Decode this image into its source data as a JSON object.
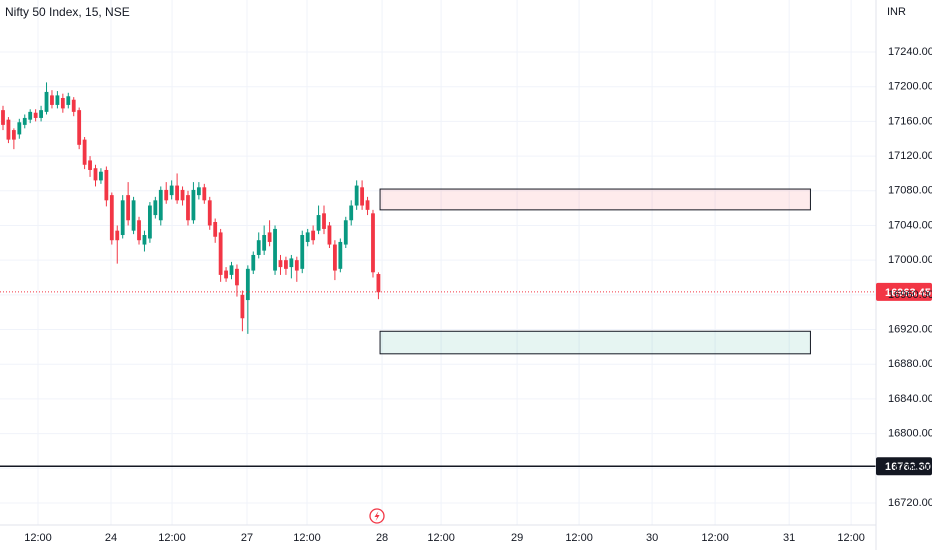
{
  "header": {
    "title": "Nifty 50 Index, 15, NSE",
    "currency": "INR"
  },
  "chart_data": {
    "type": "candlestick",
    "x": [
      0,
      1,
      2,
      3,
      4,
      5,
      6,
      7,
      8,
      9,
      10,
      11,
      12,
      13,
      14,
      15,
      16,
      17,
      18,
      19,
      20,
      21,
      22,
      23,
      24,
      25,
      26,
      27,
      28,
      29,
      30,
      31,
      32,
      33,
      34,
      35,
      36,
      37,
      38,
      39,
      40,
      41,
      42,
      43,
      44,
      45,
      46,
      47,
      48,
      49,
      50,
      51,
      52,
      53,
      54,
      55,
      56,
      57,
      58,
      59,
      60,
      61,
      62,
      63,
      64,
      65,
      66,
      67,
      68,
      69
    ],
    "open": [
      17173,
      17162,
      17150,
      17145,
      17156,
      17162,
      17170,
      17164,
      17171,
      17190,
      17179,
      17187,
      17179,
      17185,
      17173,
      17139,
      17115,
      17106,
      17092,
      17104,
      17075,
      17034,
      17029,
      17075,
      17034,
      17046,
      17018,
      17025,
      17052,
      17046,
      17081,
      17075,
      17086,
      17081,
      17075,
      17046,
      17075,
      17084,
      17069,
      17044,
      17032,
      16988,
      16983,
      16990,
      16960,
      16954,
      16988,
      17006,
      17011,
      17032,
      16988,
      17000,
      17000,
      16992,
      17000,
      16990,
      17021,
      17034,
      17034,
      17054,
      17040,
      17018,
      16990,
      17018,
      17046,
      17063,
      17084,
      17069,
      17054,
      16984
    ],
    "high": [
      17178,
      17165,
      17152,
      17163,
      17168,
      17174,
      17174,
      17178,
      17205,
      17196,
      17195,
      17192,
      17193,
      17188,
      17176,
      17142,
      17120,
      17110,
      17106,
      17108,
      17078,
      17040,
      17075,
      17090,
      17073,
      17050,
      17034,
      17067,
      17073,
      17085,
      17090,
      17092,
      17100,
      17085,
      17080,
      17090,
      17090,
      17088,
      17073,
      17048,
      17036,
      16992,
      16998,
      16995,
      16965,
      16994,
      17010,
      17032,
      17040,
      17046,
      17040,
      17006,
      17004,
      17006,
      17004,
      17034,
      17036,
      17040,
      17063,
      17063,
      17044,
      17023,
      17025,
      17050,
      17069,
      17092,
      17092,
      17073,
      17058,
      16986
    ],
    "low": [
      17150,
      17135,
      17128,
      17140,
      17152,
      17158,
      17160,
      17160,
      17168,
      17175,
      17175,
      17170,
      17175,
      17166,
      17128,
      17105,
      17096,
      17085,
      17088,
      17062,
      17018,
      16996,
      17025,
      17040,
      17030,
      17018,
      17010,
      17020,
      17048,
      17040,
      17065,
      17070,
      17065,
      17063,
      17040,
      17042,
      17070,
      17065,
      17035,
      17020,
      16975,
      16975,
      16978,
      16958,
      16918,
      16915,
      16984,
      17002,
      17006,
      17016,
      16983,
      16983,
      16983,
      16979,
      16975,
      16985,
      17016,
      17018,
      17030,
      17030,
      17014,
      16977,
      16986,
      17014,
      17040,
      17058,
      17058,
      17052,
      16980,
      16955
    ],
    "close": [
      17156,
      17139,
      17139,
      17159,
      17164,
      17171,
      17164,
      17173,
      17194,
      17179,
      17190,
      17175,
      17189,
      17171,
      17133,
      17110,
      17104,
      17092,
      17102,
      17069,
      17023,
      17023,
      17069,
      17046,
      17069,
      17023,
      17029,
      17063,
      17069,
      17081,
      17069,
      17086,
      17069,
      17069,
      17046,
      17081,
      17084,
      17069,
      17040,
      17027,
      16983,
      16979,
      16994,
      16971,
      16933,
      16990,
      17006,
      17023,
      17029,
      17021,
      17036,
      16992,
      16990,
      17002,
      16988,
      17029,
      17032,
      17023,
      17052,
      17036,
      17018,
      16988,
      17021,
      17046,
      17063,
      17086,
      17063,
      17058,
      16986,
      16963
    ],
    "up_color": "#089981",
    "down_color": "#f23645",
    "xlim": [
      -0.55,
      160.45
    ],
    "xticks": [
      {
        "value": 6.43,
        "label": "12:00"
      },
      {
        "value": 19.85,
        "label": "24"
      },
      {
        "value": 31.07,
        "label": "12:00"
      },
      {
        "value": 44.85,
        "label": "27"
      },
      {
        "value": 55.88,
        "label": "12:00"
      },
      {
        "value": 69.67,
        "label": "28"
      },
      {
        "value": 80.52,
        "label": "12:00"
      },
      {
        "value": 94.49,
        "label": "29"
      },
      {
        "value": 105.88,
        "label": "12:00"
      },
      {
        "value": 119.3,
        "label": "30"
      },
      {
        "value": 130.88,
        "label": "12:00"
      },
      {
        "value": 144.49,
        "label": "31"
      },
      {
        "value": 155.88,
        "label": "12:00"
      }
    ],
    "ylim": [
      16694.6,
      17300
    ],
    "yticks": [
      {
        "value": 16720,
        "label": "16720.00"
      },
      {
        "value": 16760,
        "label": "16760.00"
      },
      {
        "value": 16800,
        "label": "16800.00"
      },
      {
        "value": 16840,
        "label": "16840.00"
      },
      {
        "value": 16880,
        "label": "16880.00"
      },
      {
        "value": 16920,
        "label": "16920.00"
      },
      {
        "value": 16960,
        "label": "16960.00"
      },
      {
        "value": 17000,
        "label": "17000.00"
      },
      {
        "value": 17040,
        "label": "17040.00"
      },
      {
        "value": 17080,
        "label": "17080.00"
      },
      {
        "value": 17120,
        "label": "17120.00"
      },
      {
        "value": 17160,
        "label": "17160.00"
      },
      {
        "value": 17200,
        "label": "17200.00"
      },
      {
        "value": 17240,
        "label": "17240.00"
      }
    ],
    "grid": true,
    "last_price": {
      "value": 16963.45,
      "label": "16963.45"
    },
    "horizontal_line": {
      "value": 16762.3,
      "label": "16762.30"
    },
    "zones": [
      {
        "x": [
          69.3,
          148.4
        ],
        "y": [
          17058,
          17082
        ],
        "color": "#f23645"
      },
      {
        "x": [
          69.3,
          148.4
        ],
        "y": [
          16892,
          16918
        ],
        "color": "#089981"
      }
    ]
  }
}
